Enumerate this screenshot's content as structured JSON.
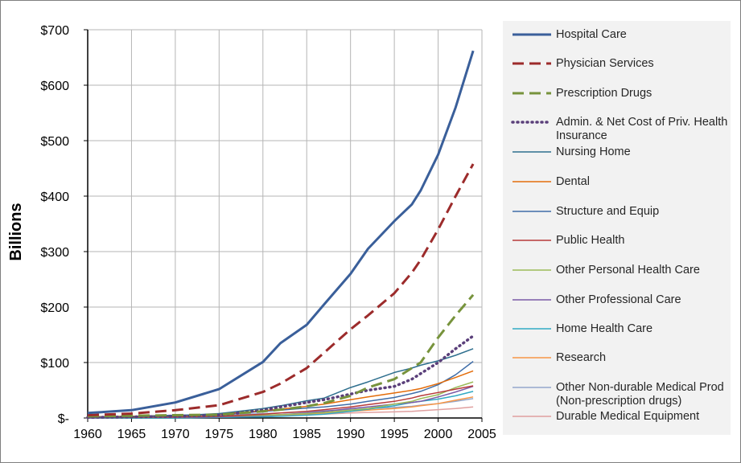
{
  "chart_data": {
    "type": "line",
    "title": "",
    "xlabel": "",
    "ylabel": "Billions",
    "xlim": [
      1960,
      2005
    ],
    "ylim": [
      0,
      700
    ],
    "x_ticks": [
      "1960",
      "1965",
      "1970",
      "1975",
      "1980",
      "1985",
      "1990",
      "1995",
      "2000",
      "2005"
    ],
    "y_ticks": [
      "$-",
      "$100",
      "$200",
      "$300",
      "$400",
      "$500",
      "$600",
      "$700"
    ],
    "grid": true,
    "legend_position": "right",
    "x": [
      1960,
      1965,
      1970,
      1975,
      1980,
      1982,
      1985,
      1987,
      1990,
      1992,
      1995,
      1997,
      1998,
      2000,
      2002,
      2004
    ],
    "series": [
      {
        "name": "Hospital Care",
        "color": "#3a5f9a",
        "style": "solid-thick",
        "values": [
          9,
          14,
          28,
          52,
          101,
          135,
          168,
          205,
          260,
          305,
          355,
          385,
          410,
          475,
          560,
          662
        ]
      },
      {
        "name": "Physician Services",
        "color": "#9c2b2b",
        "style": "dashed",
        "values": [
          5,
          8,
          14,
          23,
          47,
          62,
          90,
          118,
          160,
          185,
          225,
          262,
          285,
          340,
          400,
          458
        ]
      },
      {
        "name": "Prescription Drugs",
        "color": "#77933c",
        "style": "dashed",
        "values": [
          3,
          4,
          5,
          6,
          12,
          15,
          21,
          27,
          40,
          55,
          70,
          90,
          100,
          145,
          185,
          222
        ]
      },
      {
        "name": "Admin. & Net Cost of Priv. Health Insurance",
        "color": "#5a3f7a",
        "style": "dotted",
        "values": [
          1,
          2,
          3,
          5,
          14,
          20,
          28,
          33,
          43,
          50,
          57,
          70,
          80,
          100,
          125,
          148
        ]
      },
      {
        "name": "Nursing Home",
        "color": "#2e6f8e",
        "style": "solid",
        "values": [
          1,
          2,
          4,
          8,
          17,
          22,
          31,
          36,
          55,
          65,
          82,
          90,
          95,
          103,
          113,
          125
        ]
      },
      {
        "name": "Dental",
        "color": "#e36c0a",
        "style": "solid",
        "values": [
          2,
          3,
          4,
          7,
          13,
          16,
          21,
          25,
          33,
          38,
          45,
          50,
          53,
          62,
          73,
          85
        ]
      },
      {
        "name": "Structure and Equip",
        "color": "#3f6da8",
        "style": "solid",
        "values": [
          2,
          3,
          5,
          6,
          12,
          14,
          18,
          20,
          25,
          30,
          37,
          44,
          48,
          60,
          78,
          102
        ]
      },
      {
        "name": "Public Health",
        "color": "#b83a3a",
        "style": "solid",
        "values": [
          1,
          1,
          2,
          3,
          7,
          9,
          12,
          15,
          20,
          24,
          30,
          36,
          40,
          46,
          52,
          58
        ]
      },
      {
        "name": "Other Personal Health Care",
        "color": "#9bbb59",
        "style": "solid",
        "values": [
          1,
          1,
          2,
          3,
          5,
          6,
          8,
          10,
          14,
          17,
          25,
          30,
          35,
          42,
          55,
          65
        ]
      },
      {
        "name": "Other Professional Care",
        "color": "#7b5aa6",
        "style": "solid",
        "values": [
          0,
          1,
          1,
          2,
          4,
          6,
          9,
          12,
          17,
          20,
          25,
          28,
          30,
          38,
          47,
          57
        ]
      },
      {
        "name": "Home Health Care",
        "color": "#31a9c4",
        "style": "solid",
        "values": [
          0,
          0,
          0,
          1,
          2,
          3,
          5,
          7,
          12,
          16,
          22,
          28,
          30,
          34,
          40,
          48
        ]
      },
      {
        "name": "Research",
        "color": "#f79646",
        "style": "solid",
        "values": [
          1,
          2,
          2,
          3,
          5,
          6,
          7,
          9,
          12,
          14,
          17,
          20,
          22,
          26,
          32,
          38
        ]
      },
      {
        "name": "Other Non-durable Medical Prod (Non-prescription drugs)",
        "color": "#95a8cc",
        "style": "solid",
        "values": [
          2,
          3,
          4,
          5,
          8,
          9,
          11,
          13,
          15,
          17,
          19,
          21,
          23,
          26,
          30,
          35
        ]
      },
      {
        "name": "Durable Medical Equipment",
        "color": "#e0a0a0",
        "style": "solid",
        "values": [
          1,
          1,
          2,
          2,
          4,
          5,
          6,
          7,
          9,
          10,
          11,
          12,
          13,
          15,
          17,
          20
        ]
      }
    ]
  },
  "legend": {
    "items": [
      {
        "label": "Hospital Care",
        "color": "#3a5f9a",
        "style": "solid-thick"
      },
      {
        "label": "Physician Services",
        "color": "#9c2b2b",
        "style": "dashed"
      },
      {
        "label": "Prescription Drugs",
        "color": "#77933c",
        "style": "dashed"
      },
      {
        "label": "Admin. & Net Cost of Priv. Health Insurance",
        "color": "#5a3f7a",
        "style": "dotted"
      },
      {
        "label": "Nursing Home",
        "color": "#2e6f8e",
        "style": "solid"
      },
      {
        "label": "Dental",
        "color": "#e36c0a",
        "style": "solid"
      },
      {
        "label": "Structure and Equip",
        "color": "#3f6da8",
        "style": "solid"
      },
      {
        "label": "Public Health",
        "color": "#b83a3a",
        "style": "solid"
      },
      {
        "label": "Other Personal Health Care",
        "color": "#9bbb59",
        "style": "solid"
      },
      {
        "label": "Other Professional Care",
        "color": "#7b5aa6",
        "style": "solid"
      },
      {
        "label": "Home Health Care",
        "color": "#31a9c4",
        "style": "solid"
      },
      {
        "label": "Research",
        "color": "#f79646",
        "style": "solid"
      },
      {
        "label": "Other Non-durable Medical Prod (Non-prescription drugs)",
        "color": "#95a8cc",
        "style": "solid"
      },
      {
        "label": "Durable Medical Equipment",
        "color": "#e0a0a0",
        "style": "solid"
      }
    ]
  }
}
